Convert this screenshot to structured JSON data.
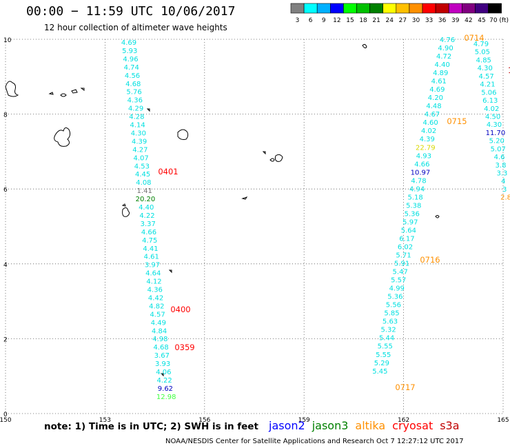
{
  "header": {
    "title": "00:00 − 11:59 UTC 10/06/2017",
    "subtitle": "12 hour collection of altimeter wave heights"
  },
  "colorbar": {
    "swatches": [
      "#808080",
      "#00ffff",
      "#00b0ff",
      "#0000ff",
      "#00ff00",
      "#00c000",
      "#008000",
      "#ffff00",
      "#ffc000",
      "#ff9000",
      "#ff0000",
      "#c00000",
      "#c000c0",
      "#800080",
      "#400080",
      "#000000"
    ],
    "labels": [
      "3",
      "6",
      "9",
      "12",
      "15",
      "18",
      "21",
      "24",
      "27",
      "30",
      "33",
      "36",
      "39",
      "42",
      "45",
      "70 (ft)"
    ]
  },
  "map_axes": {
    "lon_ticks": [
      "150",
      "153",
      "156",
      "159",
      "162",
      "165"
    ],
    "lat_ticks": [
      "0",
      "2",
      "4",
      "6",
      "8",
      "10"
    ],
    "lon_range": [
      150,
      165
    ],
    "lat_range": [
      0,
      10
    ]
  },
  "tracks": [
    {
      "name": "track-left",
      "values": [
        {
          "t": "4.69",
          "c": "#00e0e0"
        },
        {
          "t": "5.93",
          "c": "#00e0e0"
        },
        {
          "t": "4.96",
          "c": "#00e0e0"
        },
        {
          "t": "4.74",
          "c": "#00e0e0"
        },
        {
          "t": "4.56",
          "c": "#00e0e0"
        },
        {
          "t": "4.68",
          "c": "#00e0e0"
        },
        {
          "t": "5.76",
          "c": "#00e0e0"
        },
        {
          "t": "4.36",
          "c": "#00e0e0"
        },
        {
          "t": "4.29",
          "c": "#00e0e0"
        },
        {
          "t": "4.28",
          "c": "#00e0e0"
        },
        {
          "t": "4.14",
          "c": "#00e0e0"
        },
        {
          "t": "4.30",
          "c": "#00e0e0"
        },
        {
          "t": "4.39",
          "c": "#00e0e0"
        },
        {
          "t": "4.27",
          "c": "#00e0e0"
        },
        {
          "t": "4.07",
          "c": "#00e0e0"
        },
        {
          "t": "4.53",
          "c": "#00e0e0"
        },
        {
          "t": "4.45",
          "c": "#00e0e0"
        },
        {
          "t": "4.08",
          "c": "#00e0e0"
        },
        {
          "t": "1.41",
          "c": "#707070"
        },
        {
          "t": "20.20",
          "c": "#008000"
        },
        {
          "t": "4.40",
          "c": "#00e0e0"
        },
        {
          "t": "4.22",
          "c": "#00e0e0"
        },
        {
          "t": "3.37",
          "c": "#00e0e0"
        },
        {
          "t": "4.66",
          "c": "#00e0e0"
        },
        {
          "t": "4.75",
          "c": "#00e0e0"
        },
        {
          "t": "4.41",
          "c": "#00e0e0"
        },
        {
          "t": "4.61",
          "c": "#00e0e0"
        },
        {
          "t": "3.97",
          "c": "#00e0e0"
        },
        {
          "t": "4.64",
          "c": "#00e0e0"
        },
        {
          "t": "4.12",
          "c": "#00e0e0"
        },
        {
          "t": "4.36",
          "c": "#00e0e0"
        },
        {
          "t": "4.42",
          "c": "#00e0e0"
        },
        {
          "t": "4.82",
          "c": "#00e0e0"
        },
        {
          "t": "4.57",
          "c": "#00e0e0"
        },
        {
          "t": "4.49",
          "c": "#00e0e0"
        },
        {
          "t": "4.84",
          "c": "#00e0e0"
        },
        {
          "t": "4.98",
          "c": "#00e0e0"
        },
        {
          "t": "4.68",
          "c": "#00e0e0"
        },
        {
          "t": "3.67",
          "c": "#00e0e0"
        },
        {
          "t": "3.93",
          "c": "#00e0e0"
        },
        {
          "t": "4.06",
          "c": "#00e0e0"
        },
        {
          "t": "4.22",
          "c": "#00e0e0"
        },
        {
          "t": "9.62",
          "c": "#0000c0"
        },
        {
          "t": "12.98",
          "c": "#40ff40"
        }
      ]
    },
    {
      "name": "track-right",
      "values": [
        {
          "t": "4.76",
          "c": "#00e0e0"
        },
        {
          "t": "4.90",
          "c": "#00e0e0"
        },
        {
          "t": "4.72",
          "c": "#00e0e0"
        },
        {
          "t": "4.40",
          "c": "#00e0e0"
        },
        {
          "t": "4.89",
          "c": "#00e0e0"
        },
        {
          "t": "4.61",
          "c": "#00e0e0"
        },
        {
          "t": "4.69",
          "c": "#00e0e0"
        },
        {
          "t": "4.20",
          "c": "#00e0e0"
        },
        {
          "t": "4.48",
          "c": "#00e0e0"
        },
        {
          "t": "4.67",
          "c": "#00e0e0"
        },
        {
          "t": "4.60",
          "c": "#00e0e0"
        },
        {
          "t": "4.02",
          "c": "#00e0e0"
        },
        {
          "t": "4.39",
          "c": "#00e0e0"
        },
        {
          "t": "22.79",
          "c": "#d8d800"
        },
        {
          "t": "4.93",
          "c": "#00e0e0"
        },
        {
          "t": "4.66",
          "c": "#00e0e0"
        },
        {
          "t": "10.97",
          "c": "#0000c0"
        },
        {
          "t": "4.78",
          "c": "#00e0e0"
        },
        {
          "t": "4.94",
          "c": "#00e0e0"
        },
        {
          "t": "5.18",
          "c": "#00e0e0"
        },
        {
          "t": "5.38",
          "c": "#00e0e0"
        },
        {
          "t": "5.36",
          "c": "#00e0e0"
        },
        {
          "t": "5.97",
          "c": "#00e0e0"
        },
        {
          "t": "5.64",
          "c": "#00e0e0"
        },
        {
          "t": "6.17",
          "c": "#00e0e0"
        },
        {
          "t": "6.02",
          "c": "#00e0e0"
        },
        {
          "t": "5.71",
          "c": "#00e0e0"
        },
        {
          "t": "5.91",
          "c": "#00e0e0"
        },
        {
          "t": "5.47",
          "c": "#00e0e0"
        },
        {
          "t": "5.57",
          "c": "#00e0e0"
        },
        {
          "t": "4.99",
          "c": "#00e0e0"
        },
        {
          "t": "5.36",
          "c": "#00e0e0"
        },
        {
          "t": "5.56",
          "c": "#00e0e0"
        },
        {
          "t": "5.85",
          "c": "#00e0e0"
        },
        {
          "t": "5.63",
          "c": "#00e0e0"
        },
        {
          "t": "5.32",
          "c": "#00e0e0"
        },
        {
          "t": "5.44",
          "c": "#00e0e0"
        },
        {
          "t": "5.55",
          "c": "#00e0e0"
        },
        {
          "t": "5.55",
          "c": "#00e0e0"
        },
        {
          "t": "5.29",
          "c": "#00e0e0"
        },
        {
          "t": "5.45",
          "c": "#00e0e0"
        }
      ]
    },
    {
      "name": "track-far-right",
      "values": [
        {
          "t": "4.79",
          "c": "#00e0e0"
        },
        {
          "t": "5.05",
          "c": "#00e0e0"
        },
        {
          "t": "4.85",
          "c": "#00e0e0"
        },
        {
          "t": "4.30",
          "c": "#00e0e0"
        },
        {
          "t": "4.57",
          "c": "#00e0e0"
        },
        {
          "t": "4.21",
          "c": "#00e0e0"
        },
        {
          "t": "5.06",
          "c": "#00e0e0"
        },
        {
          "t": "6.13",
          "c": "#00e0e0"
        },
        {
          "t": "4.02",
          "c": "#00e0e0"
        },
        {
          "t": "4.50",
          "c": "#00e0e0"
        },
        {
          "t": "4.30",
          "c": "#00e0e0"
        },
        {
          "t": "11.70",
          "c": "#0000c0"
        },
        {
          "t": "5.20",
          "c": "#00e0e0"
        },
        {
          "t": "5.07",
          "c": "#00e0e0"
        },
        {
          "t": "4.6",
          "c": "#00e0e0"
        },
        {
          "t": "3.8",
          "c": "#00e0e0"
        },
        {
          "t": "3.3",
          "c": "#00e0e0"
        },
        {
          "t": "4",
          "c": "#00e0e0"
        },
        {
          "t": "3",
          "c": "#00e0e0"
        },
        {
          "t": "2.8",
          "c": "#ff9000"
        }
      ]
    }
  ],
  "time_labels": [
    {
      "t": "0401",
      "c": "#ff0000"
    },
    {
      "t": "0400",
      "c": "#ff0000"
    },
    {
      "t": "0359",
      "c": "#ff0000"
    },
    {
      "t": "0714",
      "c": "#ff9000"
    },
    {
      "t": "0715",
      "c": "#ff9000"
    },
    {
      "t": "0716",
      "c": "#ff9000"
    },
    {
      "t": "0717",
      "c": "#ff9000"
    },
    {
      "t": "10",
      "c": "#c00000"
    }
  ],
  "footer": {
    "note": "note: 1) Time is in UTC; 2) SWH is in feet",
    "legend": [
      {
        "name": "jason2",
        "color": "#0000ff"
      },
      {
        "name": "jason3",
        "color": "#008000"
      },
      {
        "name": "altika",
        "color": "#ff9000"
      },
      {
        "name": "cryosat",
        "color": "#ff0000"
      },
      {
        "name": "s3a",
        "color": "#c00000"
      }
    ],
    "credit": "NOAA/NESDIS Center for Satellite Applications and Research   Oct  7 12:27:12 UTC 2017"
  }
}
